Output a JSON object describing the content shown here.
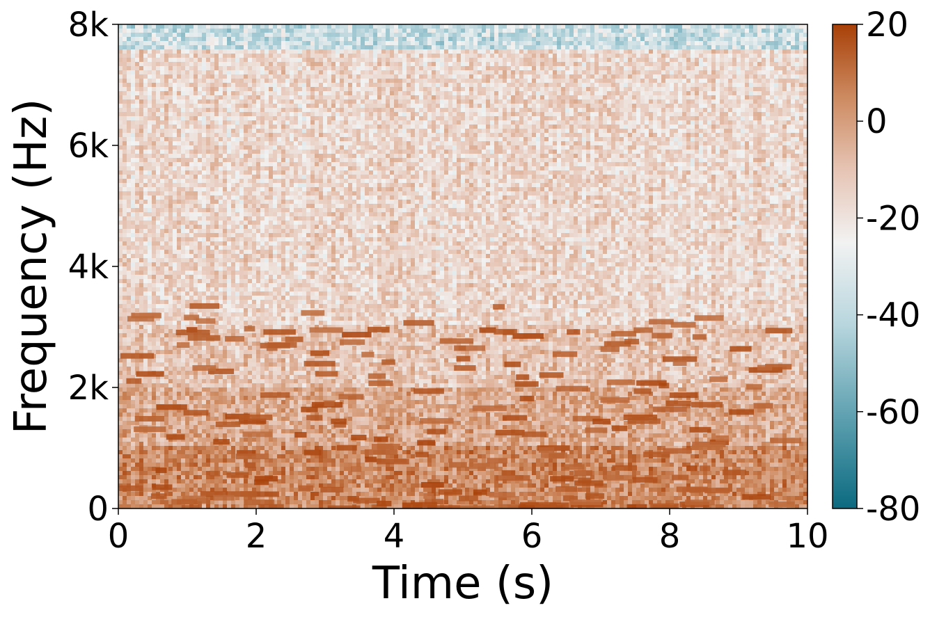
{
  "chart_data": {
    "type": "heatmap",
    "subtype": "spectrogram",
    "title": "",
    "xlabel": "Time (s)",
    "ylabel": "Frequency (Hz)",
    "xlim": [
      0,
      10
    ],
    "ylim": [
      0,
      8000
    ],
    "x_ticks": [
      0,
      2,
      4,
      6,
      8,
      10
    ],
    "x_tick_labels": [
      "0",
      "2",
      "4",
      "6",
      "8",
      "10"
    ],
    "y_ticks": [
      0,
      2000,
      4000,
      6000,
      8000
    ],
    "y_tick_labels": [
      "0",
      "2k",
      "4k",
      "6k",
      "8k"
    ],
    "colorbar": {
      "range": [
        -80,
        20
      ],
      "ticks": [
        20,
        0,
        -20,
        -40,
        -60,
        -80
      ],
      "tick_labels": [
        "20",
        "0",
        "-20",
        "-40",
        "-60",
        "-80"
      ],
      "colormap_stops": [
        "#0b6a80",
        "#5a9eae",
        "#a9cdd6",
        "#f2f2f2",
        "#e6c4b4",
        "#cd8a60",
        "#a84008"
      ]
    },
    "description_values": {
      "energy_concentrated_below_hz": 2000,
      "high_band_low_energy_above_hz": 7600
    },
    "grid": false
  }
}
